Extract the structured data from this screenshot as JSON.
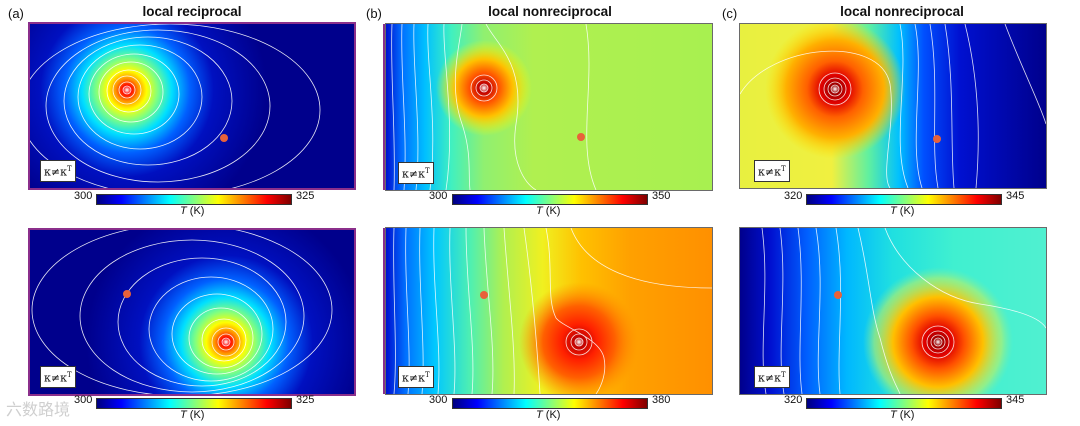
{
  "columns": [
    {
      "letter": "(a)",
      "title": "local reciprocal"
    },
    {
      "letter": "(b)",
      "title": "local nonreciprocal"
    },
    {
      "letter": "(c)",
      "title": "local nonreciprocal"
    }
  ],
  "kappa_label": "κ≠κ",
  "kappa_sup": "T",
  "colorbar_title_var": "T",
  "colorbar_title_unit": " (K)",
  "colorbars": {
    "a_top": {
      "min": "300",
      "max": "325"
    },
    "b_top": {
      "min": "300",
      "max": "350"
    },
    "c_top": {
      "min": "320",
      "max": "345"
    },
    "a_bottom": {
      "min": "300",
      "max": "325"
    },
    "b_bottom": {
      "min": "300",
      "max": "380"
    },
    "c_bottom": {
      "min": "320",
      "max": "345"
    }
  },
  "watermark": "六数路境",
  "colors": {
    "frame": "#8b2f8b",
    "marker": "#e8623a",
    "contour": "#ffffff"
  }
}
